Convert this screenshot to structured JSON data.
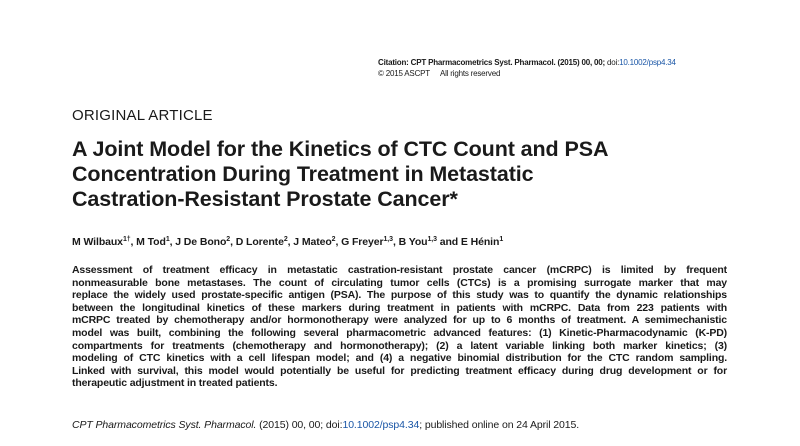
{
  "citation": {
    "label": "Citation:",
    "journal_volume": "CPT Pharmacometrics Syst. Pharmacol. (2015) 00, 00;",
    "doi_prefix": "doi:",
    "doi": "10.1002/psp4.34",
    "copyright": "© 2015 ASCPT",
    "rights": "All rights reserved"
  },
  "article_type": "ORIGINAL ARTICLE",
  "title_lines": [
    "A Joint Model for the Kinetics of CTC Count and PSA",
    "Concentration During Treatment in Metastatic",
    "Castration-Resistant Prostate Cancer*"
  ],
  "authors": [
    {
      "name": "M Wilbaux",
      "sup": "1†"
    },
    {
      "name": "M Tod",
      "sup": "1"
    },
    {
      "name": "J De Bono",
      "sup": "2"
    },
    {
      "name": "D Lorente",
      "sup": "2"
    },
    {
      "name": "J Mateo",
      "sup": "2"
    },
    {
      "name": "G Freyer",
      "sup": "1,3"
    },
    {
      "name": "B You",
      "sup": "1,3"
    },
    {
      "name": "E Hénin",
      "sup": "1"
    }
  ],
  "authors_conjunction": "and",
  "abstract_lines": [
    "Assessment of treatment efficacy in metastatic castration-resistant prostate cancer (mCRPC) is limited by frequent",
    "nonmeasurable bone metastases. The count of circulating tumor cells (CTCs) is a promising surrogate marker that may",
    "replace the widely used prostate-specific antigen (PSA). The purpose of this study was to quantify the dynamic relationships",
    "between the longitudinal kinetics of these markers during treatment in patients with mCRPC. Data from 223 patients with",
    "mCRPC treated by chemotherapy and/or hormonotherapy were analyzed for up to 6 months of treatment. A semimechanistic",
    "model was built, combining the following several pharmacometric advanced features: (1) Kinetic-Pharmacodynamic (K-PD)",
    "compartments for treatments (chemotherapy and hormonotherapy); (2) a latent variable linking both marker kinetics; (3)",
    "modeling of CTC kinetics with a cell lifespan model; and (4) a negative binomial distribution for the CTC random sampling.",
    "Linked with survival, this model would potentially be useful for predicting treatment efficacy during drug development or for",
    "therapeutic adjustment in treated patients."
  ],
  "footer_citation": {
    "journal": "CPT Pharmacometrics Syst. Pharmacol.",
    "year_vol": "(2015) 00, 00; doi:",
    "doi": "10.1002/psp4.34",
    "published": "; published online on 24 April 2015."
  },
  "colors": {
    "text": "#1a1a1a",
    "link": "#1a56a6"
  }
}
